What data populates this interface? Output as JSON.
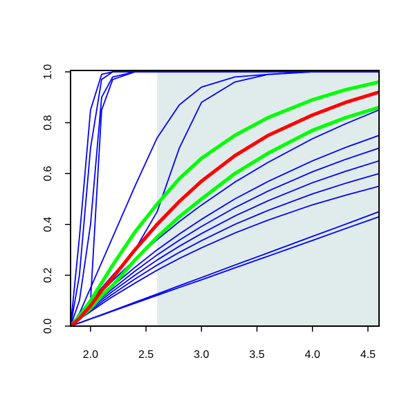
{
  "chart_data": {
    "type": "line",
    "x": [
      1.82,
      1.9,
      2.0,
      2.1,
      2.2,
      2.4,
      2.6,
      2.8,
      3.0,
      3.3,
      3.6,
      4.0,
      4.3,
      4.6
    ],
    "xlim": [
      1.82,
      4.6
    ],
    "ylim": [
      0,
      1
    ],
    "xticks": [
      {
        "value": 2,
        "label": "2.0"
      },
      2.5,
      {
        "value": 3,
        "label": "3.0"
      },
      3.5,
      {
        "value": 4,
        "label": "4.0"
      },
      4.5
    ],
    "yticks": [
      {
        "value": 0,
        "label": "0.0"
      },
      0.2,
      0.4,
      0.6,
      0.8,
      {
        "value": 1,
        "label": "1.0"
      }
    ],
    "shade": {
      "x": [
        2.6,
        4.6
      ],
      "color": "#e0ecec"
    },
    "series": [
      {
        "color": "#0000ff",
        "values": [
          0,
          0.35,
          0.85,
          0.99,
          1,
          1,
          1,
          1,
          1,
          1,
          1,
          1,
          1,
          1
        ]
      },
      {
        "color": "#0000ff",
        "values": [
          0,
          0.2,
          0.7,
          0.97,
          1,
          1,
          1,
          1,
          1,
          1,
          1,
          1,
          1,
          1
        ]
      },
      {
        "color": "#0000ff",
        "values": [
          0,
          0.1,
          0.4,
          0.9,
          0.98,
          1,
          1,
          1,
          1,
          1,
          1,
          1,
          1,
          1
        ]
      },
      {
        "color": "#0000ff",
        "values": [
          0,
          0.05,
          0.1,
          0.85,
          0.97,
          1,
          1,
          1,
          1,
          1,
          1,
          1,
          1,
          1
        ]
      },
      {
        "color": "#0000ff",
        "values": [
          0,
          0.05,
          0.15,
          0.25,
          0.35,
          0.55,
          0.74,
          0.87,
          0.94,
          0.98,
          0.99,
          1,
          1,
          1
        ]
      },
      {
        "color": "#0000ff",
        "values": [
          0,
          0.03,
          0.1,
          0.15,
          0.2,
          0.3,
          0.45,
          0.7,
          0.88,
          0.96,
          0.99,
          1,
          1,
          1
        ]
      },
      {
        "color": "#0000ff",
        "values": [
          0,
          0.04,
          0.088,
          0.134,
          0.179,
          0.262,
          0.34,
          0.411,
          0.476,
          0.566,
          0.644,
          0.737,
          0.796,
          0.85
        ]
      },
      {
        "color": "#0000ff",
        "values": [
          0,
          0.035,
          0.078,
          0.119,
          0.158,
          0.231,
          0.3,
          0.362,
          0.42,
          0.5,
          0.569,
          0.65,
          0.703,
          0.75
        ]
      },
      {
        "color": "#0000ff",
        "values": [
          0,
          0.033,
          0.073,
          0.111,
          0.147,
          0.216,
          0.28,
          0.338,
          0.392,
          0.466,
          0.531,
          0.607,
          0.656,
          0.7
        ]
      },
      {
        "color": "#0000ff",
        "values": [
          0,
          0.031,
          0.068,
          0.103,
          0.137,
          0.2,
          0.26,
          0.314,
          0.364,
          0.433,
          0.493,
          0.564,
          0.609,
          0.65
        ]
      },
      {
        "color": "#0000ff",
        "values": [
          0,
          0.028,
          0.062,
          0.095,
          0.126,
          0.185,
          0.24,
          0.29,
          0.336,
          0.4,
          0.455,
          0.52,
          0.562,
          0.6
        ]
      },
      {
        "color": "#0000ff",
        "values": [
          0,
          0.026,
          0.057,
          0.087,
          0.116,
          0.169,
          0.22,
          0.266,
          0.308,
          0.366,
          0.417,
          0.477,
          0.515,
          0.55
        ]
      },
      {
        "color": "#0000ff",
        "values": [
          0,
          0.013,
          0.029,
          0.045,
          0.061,
          0.094,
          0.126,
          0.159,
          0.191,
          0.24,
          0.288,
          0.353,
          0.401,
          0.45
        ]
      },
      {
        "color": "#0000ff",
        "values": [
          0,
          0.012,
          0.028,
          0.043,
          0.059,
          0.09,
          0.121,
          0.152,
          0.182,
          0.229,
          0.275,
          0.337,
          0.384,
          0.43
        ]
      },
      {
        "color": "#00ff00",
        "highlight": true,
        "values": [
          0,
          0.04,
          0.1,
          0.17,
          0.24,
          0.37,
          0.48,
          0.58,
          0.66,
          0.75,
          0.82,
          0.89,
          0.93,
          0.96
        ]
      },
      {
        "color": "#00ff00",
        "highlight": true,
        "values": [
          0,
          0.03,
          0.07,
          0.12,
          0.16,
          0.26,
          0.35,
          0.43,
          0.5,
          0.6,
          0.68,
          0.77,
          0.82,
          0.86
        ]
      },
      {
        "color": "#ff0000",
        "highlight": true,
        "values": [
          0,
          0.03,
          0.08,
          0.14,
          0.19,
          0.3,
          0.4,
          0.49,
          0.57,
          0.67,
          0.75,
          0.83,
          0.88,
          0.92
        ]
      }
    ]
  }
}
